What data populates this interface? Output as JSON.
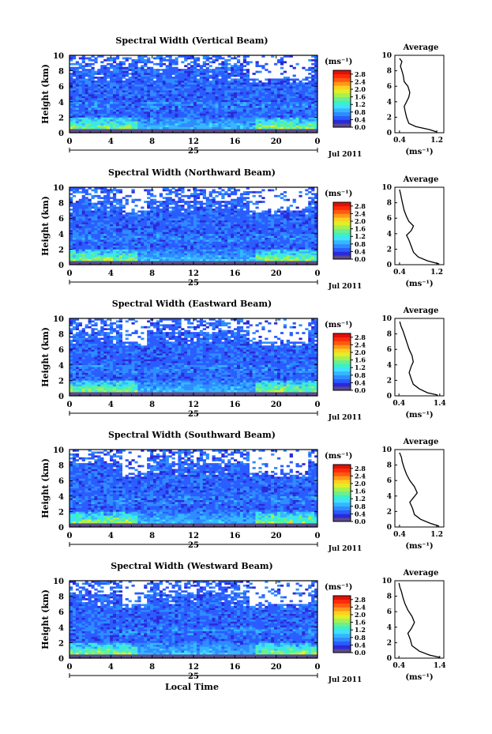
{
  "chart_data": [
    {
      "type": "heatmap",
      "title": "Spectral Width (Vertical Beam)",
      "ylabel": "Height (km)",
      "x_ticks": [
        "0",
        "4",
        "8",
        "12",
        "16",
        "20",
        "0"
      ],
      "y_ticks": [
        "0",
        "2",
        "4",
        "6",
        "8",
        "10"
      ],
      "xlim": [
        0,
        24
      ],
      "ylim": [
        0,
        10
      ],
      "date_day": "25",
      "date_label": "Jul 2011",
      "colorbar": {
        "unit": "(ms⁻¹)",
        "ticks": [
          "0.0",
          "0.4",
          "0.8",
          "1.2",
          "1.6",
          "2.0",
          "2.4",
          "2.8"
        ],
        "range": [
          0,
          3.0
        ]
      },
      "average": {
        "title": "Average",
        "xlabel": "(ms⁻¹)",
        "x_ticks": [
          "0.4",
          "1.2"
        ],
        "xlim": [
          0.3,
          1.35
        ],
        "y_ticks": [
          "0",
          "2",
          "4",
          "6",
          "8",
          "10"
        ],
        "profile": [
          [
            1.2,
            0.1
          ],
          [
            1.05,
            0.4
          ],
          [
            0.75,
            0.8
          ],
          [
            0.6,
            1.2
          ],
          [
            0.55,
            2.0
          ],
          [
            0.52,
            2.8
          ],
          [
            0.5,
            3.4
          ],
          [
            0.55,
            4.0
          ],
          [
            0.6,
            4.6
          ],
          [
            0.62,
            5.2
          ],
          [
            0.58,
            6.0
          ],
          [
            0.5,
            6.6
          ],
          [
            0.48,
            7.4
          ],
          [
            0.45,
            8.0
          ],
          [
            0.42,
            8.6
          ],
          [
            0.45,
            9.2
          ],
          [
            0.4,
            9.6
          ]
        ]
      }
    },
    {
      "type": "heatmap",
      "title": "Spectral Width (Northward Beam)",
      "ylabel": "Height (km)",
      "x_ticks": [
        "0",
        "4",
        "8",
        "12",
        "16",
        "20",
        "0"
      ],
      "y_ticks": [
        "0",
        "2",
        "4",
        "6",
        "8",
        "10"
      ],
      "xlim": [
        0,
        24
      ],
      "ylim": [
        0,
        10
      ],
      "date_day": "25",
      "date_label": "Jul 2011",
      "colorbar": {
        "unit": "(ms⁻¹)",
        "ticks": [
          "0.0",
          "0.4",
          "0.8",
          "1.2",
          "1.6",
          "2.0",
          "2.4",
          "2.8"
        ],
        "range": [
          0,
          3.0
        ]
      },
      "average": {
        "title": "Average",
        "xlabel": "(ms⁻¹)",
        "x_ticks": [
          "0.4",
          "1.2"
        ],
        "xlim": [
          0.3,
          1.35
        ],
        "y_ticks": [
          "0",
          "2",
          "4",
          "6",
          "8",
          "10"
        ],
        "profile": [
          [
            1.25,
            0.1
          ],
          [
            1.0,
            0.5
          ],
          [
            0.8,
            1.0
          ],
          [
            0.7,
            1.6
          ],
          [
            0.65,
            2.4
          ],
          [
            0.6,
            3.2
          ],
          [
            0.55,
            3.8
          ],
          [
            0.65,
            4.4
          ],
          [
            0.7,
            5.0
          ],
          [
            0.6,
            5.6
          ],
          [
            0.55,
            6.2
          ],
          [
            0.5,
            7.0
          ],
          [
            0.47,
            7.8
          ],
          [
            0.44,
            8.6
          ],
          [
            0.42,
            9.2
          ],
          [
            0.4,
            9.7
          ]
        ]
      }
    },
    {
      "type": "heatmap",
      "title": "Spectral Width (Eastward Beam)",
      "ylabel": "Height (km)",
      "x_ticks": [
        "0",
        "4",
        "8",
        "12",
        "16",
        "20",
        "0"
      ],
      "y_ticks": [
        "0",
        "2",
        "4",
        "6",
        "8",
        "10"
      ],
      "xlim": [
        0,
        24
      ],
      "ylim": [
        0,
        10
      ],
      "date_day": "25",
      "date_label": "Jul 2011",
      "colorbar": {
        "unit": "(ms⁻¹)",
        "ticks": [
          "0.0",
          "0.4",
          "0.8",
          "1.2",
          "1.6",
          "2.0",
          "2.4",
          "2.8"
        ],
        "range": [
          0,
          3.0
        ]
      },
      "average": {
        "title": "Average",
        "xlabel": "(ms⁻¹)",
        "x_ticks": [
          "0.4",
          "1.4"
        ],
        "xlim": [
          0.3,
          1.5
        ],
        "y_ticks": [
          "0",
          "2",
          "4",
          "6",
          "8",
          "10"
        ],
        "profile": [
          [
            1.35,
            0.1
          ],
          [
            1.1,
            0.4
          ],
          [
            0.9,
            0.9
          ],
          [
            0.75,
            1.5
          ],
          [
            0.7,
            2.2
          ],
          [
            0.65,
            3.0
          ],
          [
            0.7,
            3.8
          ],
          [
            0.75,
            4.4
          ],
          [
            0.72,
            5.2
          ],
          [
            0.65,
            6.0
          ],
          [
            0.6,
            6.8
          ],
          [
            0.55,
            7.6
          ],
          [
            0.5,
            8.4
          ],
          [
            0.45,
            9.0
          ],
          [
            0.42,
            9.6
          ]
        ]
      }
    },
    {
      "type": "heatmap",
      "title": "Spectral Width (Southward Beam)",
      "ylabel": "Height (km)",
      "x_ticks": [
        "0",
        "4",
        "8",
        "12",
        "16",
        "20",
        "0"
      ],
      "y_ticks": [
        "0",
        "2",
        "4",
        "6",
        "8",
        "10"
      ],
      "xlim": [
        0,
        24
      ],
      "ylim": [
        0,
        10
      ],
      "date_day": "25",
      "date_label": "Jul 2011",
      "colorbar": {
        "unit": "(ms⁻¹)",
        "ticks": [
          "0.0",
          "0.4",
          "0.8",
          "1.2",
          "1.6",
          "2.0",
          "2.4",
          "2.8"
        ],
        "range": [
          0,
          3.0
        ]
      },
      "average": {
        "title": "Average",
        "xlabel": "(ms⁻¹)",
        "x_ticks": [
          "0.4",
          "1.2"
        ],
        "xlim": [
          0.3,
          1.35
        ],
        "y_ticks": [
          "0",
          "2",
          "4",
          "6",
          "8",
          "10"
        ],
        "profile": [
          [
            1.25,
            0.1
          ],
          [
            1.05,
            0.5
          ],
          [
            0.85,
            1.0
          ],
          [
            0.72,
            1.6
          ],
          [
            0.68,
            2.4
          ],
          [
            0.62,
            3.2
          ],
          [
            0.7,
            3.8
          ],
          [
            0.78,
            4.4
          ],
          [
            0.72,
            5.2
          ],
          [
            0.62,
            6.0
          ],
          [
            0.55,
            6.8
          ],
          [
            0.5,
            7.6
          ],
          [
            0.46,
            8.4
          ],
          [
            0.44,
            9.0
          ],
          [
            0.4,
            9.6
          ]
        ]
      }
    },
    {
      "type": "heatmap",
      "title": "Spectral Width (Westward Beam)",
      "ylabel": "Height (km)",
      "xlabel": "Local Time",
      "x_ticks": [
        "0",
        "4",
        "8",
        "12",
        "16",
        "20",
        "0"
      ],
      "y_ticks": [
        "0",
        "2",
        "4",
        "6",
        "8",
        "10"
      ],
      "xlim": [
        0,
        24
      ],
      "ylim": [
        0,
        10
      ],
      "date_day": "25",
      "date_label": "Jul 2011",
      "colorbar": {
        "unit": "(ms⁻¹)",
        "ticks": [
          "0.0",
          "0.4",
          "0.8",
          "1.2",
          "1.6",
          "2.0",
          "2.4",
          "2.8"
        ],
        "range": [
          0,
          3.0
        ]
      },
      "average": {
        "title": "Average",
        "xlabel": "(ms⁻¹)",
        "x_ticks": [
          "0.4",
          "1.4"
        ],
        "xlim": [
          0.3,
          1.5
        ],
        "y_ticks": [
          "0",
          "2",
          "4",
          "6",
          "8",
          "10"
        ],
        "profile": [
          [
            1.4,
            0.1
          ],
          [
            1.15,
            0.4
          ],
          [
            0.9,
            0.9
          ],
          [
            0.72,
            1.6
          ],
          [
            0.68,
            2.4
          ],
          [
            0.62,
            3.2
          ],
          [
            0.7,
            3.8
          ],
          [
            0.78,
            4.6
          ],
          [
            0.72,
            5.4
          ],
          [
            0.62,
            6.2
          ],
          [
            0.55,
            7.0
          ],
          [
            0.5,
            7.8
          ],
          [
            0.46,
            8.6
          ],
          [
            0.42,
            9.2
          ],
          [
            0.4,
            9.7
          ]
        ]
      }
    }
  ]
}
